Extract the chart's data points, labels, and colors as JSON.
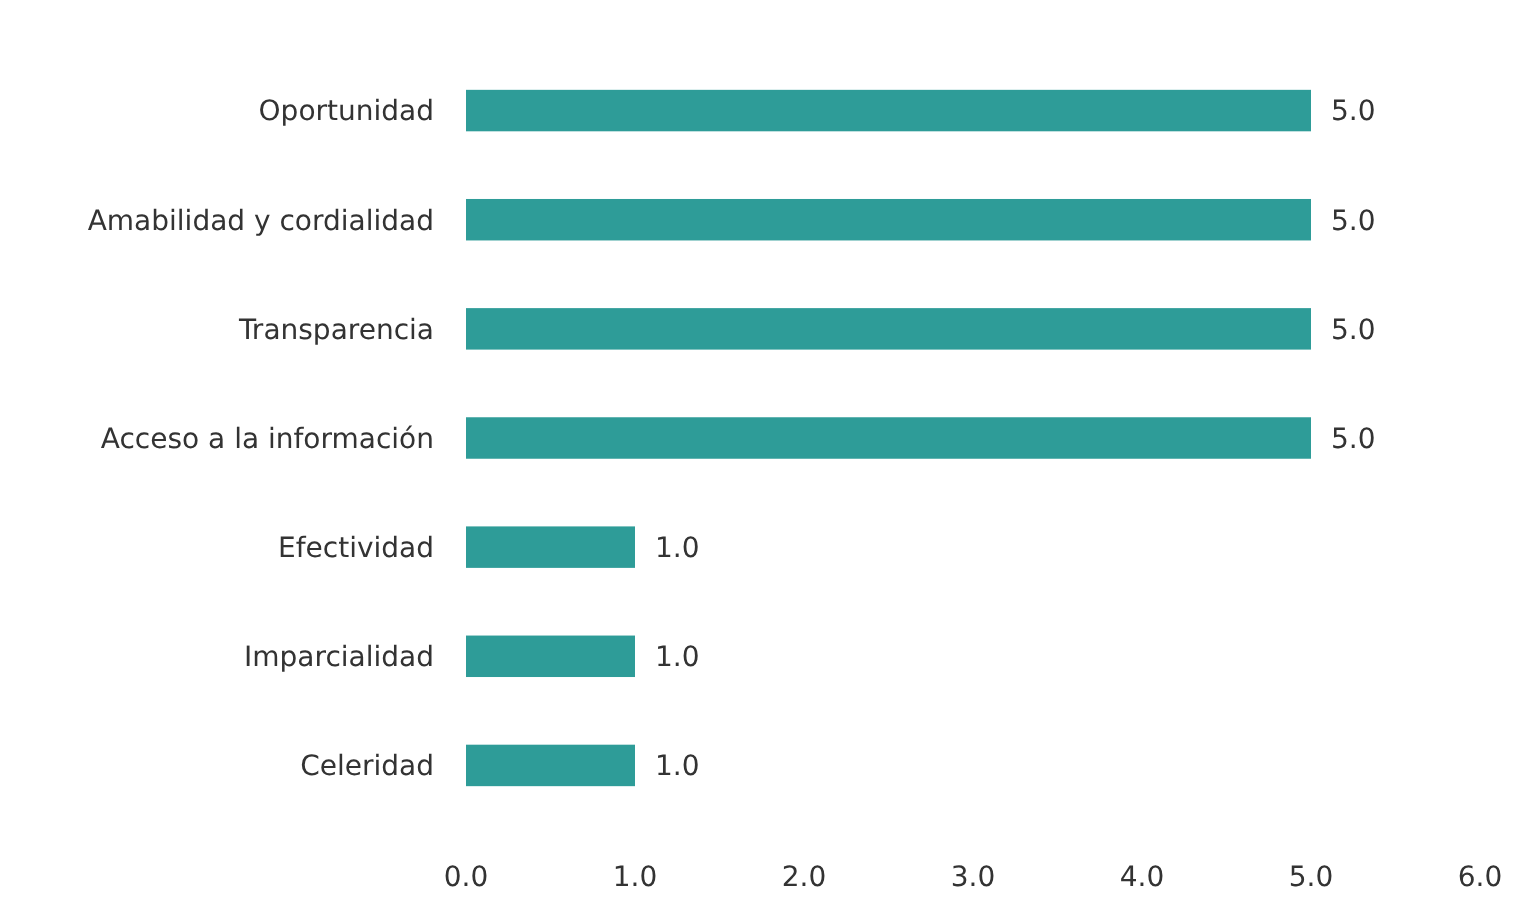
{
  "chart_data": {
    "type": "bar",
    "orientation": "horizontal",
    "categories": [
      "Oportunidad",
      "Amabilidad y cordialidad",
      "Transparencia",
      "Acceso a la información",
      "Efectividad",
      "Imparcialidad",
      "Celeridad"
    ],
    "values": [
      5,
      5,
      5,
      5,
      1,
      1,
      1
    ],
    "value_labels": [
      "5.0",
      "5.0",
      "5.0",
      "5.0",
      "1.0",
      "1.0",
      "1.0"
    ],
    "color": "#2e9c98",
    "xlim": [
      0,
      6
    ],
    "xticks": [
      {
        "value": 0,
        "label": "0.0"
      },
      {
        "value": 1,
        "label": "1.0"
      },
      {
        "value": 2,
        "label": "2.0"
      },
      {
        "value": 3,
        "label": "3.0"
      },
      {
        "value": 4,
        "label": "4.0"
      },
      {
        "value": 5,
        "label": "5.0"
      },
      {
        "value": 6,
        "label": "6.0"
      }
    ],
    "grid": false
  }
}
